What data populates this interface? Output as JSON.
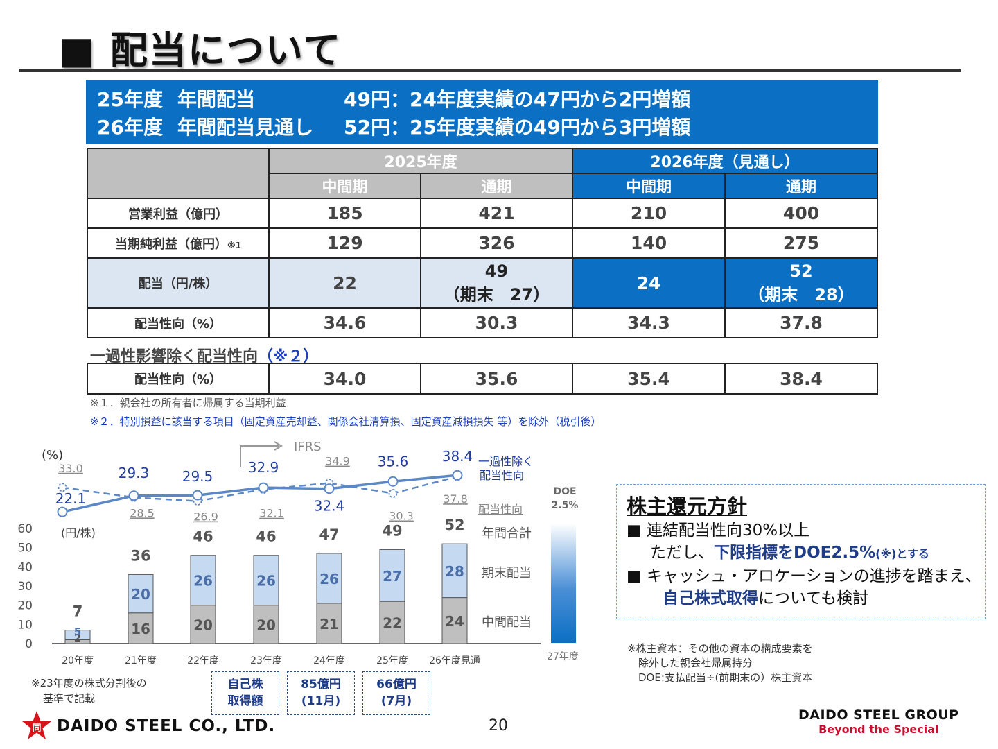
{
  "title": "■ 配当について",
  "banner": {
    "r1c1": "25年度",
    "r1c2": "年間配当",
    "r1c3": "49円：24年度実績の47円から2円増額",
    "r2c1": "26年度",
    "r2c2": "年間配当見通し",
    "r2c3": "52円：25年度実績の49円から3円増額"
  },
  "table": {
    "fy2025": "2025年度",
    "fy2026": "2026年度（見通し）",
    "interim": "中間期",
    "full": "通期",
    "rows": [
      {
        "label": "営業利益（億円）",
        "mark": "",
        "v": [
          "185",
          "421",
          "210",
          "400"
        ]
      },
      {
        "label": "当期純利益（億円）",
        "mark": "※1",
        "v": [
          "129",
          "326",
          "140",
          "275"
        ]
      },
      {
        "label": "配当（円/株）",
        "mark": "",
        "v": [
          "22",
          "49",
          "24",
          "52"
        ],
        "sub": [
          "",
          "（期末　27）",
          "",
          "（期末　28）"
        ]
      },
      {
        "label": "配当性向（%）",
        "mark": "",
        "v": [
          "34.6",
          "30.3",
          "34.3",
          "37.8"
        ]
      }
    ]
  },
  "subhead": {
    "text": "一過性影響除く配当性向",
    "ref": "（※２）"
  },
  "second": {
    "label": "配当性向（%）",
    "v": [
      "34.0",
      "35.6",
      "35.4",
      "38.4"
    ]
  },
  "notes": {
    "n1": "※１．親会社の所有者に帰属する当期利益",
    "n2": "※２．特別損益に該当する項目（固定資産売却益、関係会社清算損、固定資産減損損失 等）を除外（税引後）"
  },
  "chart_data": {
    "type": "bar",
    "categories": [
      "20年度",
      "21年度",
      "22年度",
      "23年度",
      "24年度",
      "25年度",
      "26年度見通"
    ],
    "series": [
      {
        "name": "中間配当",
        "values": [
          2,
          16,
          20,
          20,
          21,
          22,
          24
        ]
      },
      {
        "name": "期末配当",
        "values": [
          5,
          20,
          26,
          26,
          26,
          27,
          28
        ]
      },
      {
        "name": "年間合計",
        "values": [
          7,
          36,
          46,
          46,
          47,
          49,
          52
        ]
      }
    ],
    "payout_excl": {
      "name": "一過性除く配当性向",
      "values": [
        22.1,
        29.3,
        29.5,
        32.9,
        32.4,
        35.6,
        38.4
      ]
    },
    "payout": {
      "name": "配当性向",
      "values": [
        33.0,
        28.5,
        26.9,
        32.1,
        34.9,
        30.3,
        37.8
      ]
    },
    "ylabel_pct": "(%)",
    "ylabel_yen": "(円/株)",
    "yticks": [
      0,
      10,
      20,
      30,
      40,
      50,
      60
    ],
    "ylim": [
      0,
      60
    ],
    "ifrs_label": "IFRS",
    "doe_label_1": "DOE",
    "doe_label_2": "2.5%",
    "doe_year": "27年度",
    "legend": {
      "excl_1": "一過性除く",
      "excl_2": "配当性向",
      "payout": "配当性向",
      "total": "年間合計",
      "final": "期末配当",
      "interim": "中間配当"
    },
    "colors": {
      "interim": "#bfbfbf",
      "final": "#c5d9f1",
      "excl_line": "#5b87c5",
      "payout_line": "#5b87c5",
      "excl_text": "#1f3c9e",
      "payout_text": "#888888"
    }
  },
  "chart_note": [
    "※23年度の株式分割後の",
    "基準で記載"
  ],
  "buyback": [
    {
      "l1": "自己株",
      "l2": "取得額"
    },
    {
      "l1": "85億円",
      "l2": "(11月)"
    },
    {
      "l1": "66億円",
      "l2": "(7月)"
    }
  ],
  "policy": {
    "heading": "株主還元方針",
    "b1": "■ 連結配当性向30%以上",
    "b1b_pre": "ただし、",
    "b1b_emph": "下限指標をDOE2.5%",
    "b1b_tiny": "(※)とする",
    "b2": "■ キャッシュ・アロケーションの進捗を踏まえ、",
    "b2b_emph": "自己株式取得",
    "b2b_post": "についても検討"
  },
  "cap_note": [
    "※株主資本：その他の資本の構成要素を",
    "除外した親会社帰属持分",
    "DOE:支払配当÷(前期末の）株主資本"
  ],
  "page_number": "20",
  "logo_left": "DAIDO STEEL CO., LTD.",
  "logo_left_mark": "同",
  "logo_right_1": "DAIDO STEEL GROUP",
  "logo_right_2": "Beyond the Special"
}
